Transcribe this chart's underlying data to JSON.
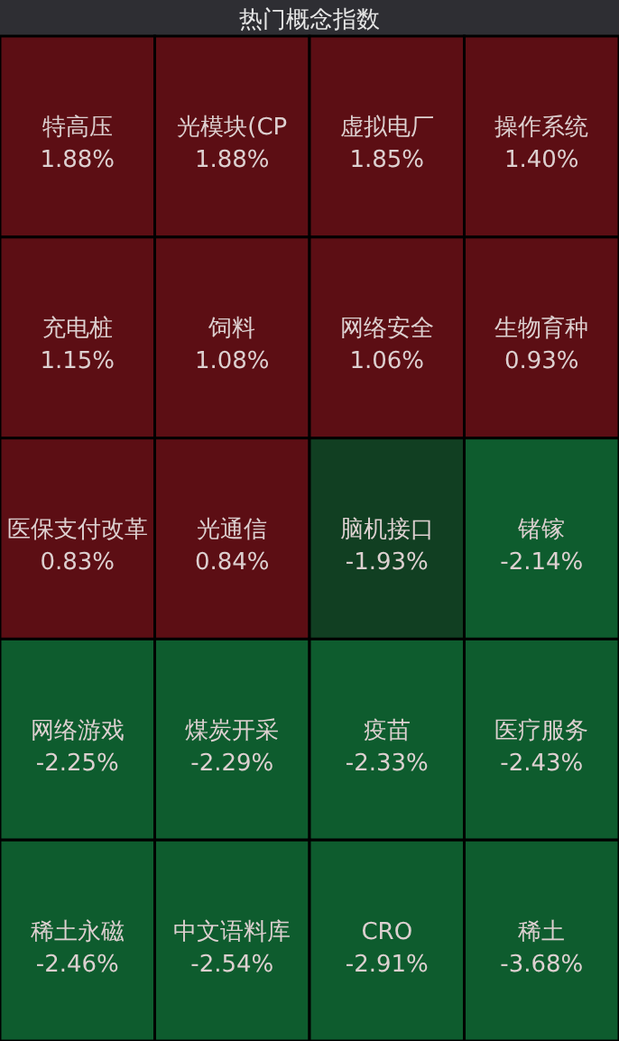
{
  "chart_data": {
    "type": "other",
    "title": "热门概念指数",
    "categories": [
      "特高压",
      "光模块(CP",
      "虚拟电厂",
      "操作系统",
      "充电桩",
      "饲料",
      "网络安全",
      "生物育种",
      "医保支付改革",
      "光通信",
      "脑机接口",
      "锗镓",
      "网络游戏",
      "煤炭开采",
      "疫苗",
      "医疗服务",
      "稀土永磁",
      "中文语料库",
      "CRO",
      "稀土"
    ],
    "values": [
      1.88,
      1.88,
      1.85,
      1.4,
      1.15,
      1.08,
      1.06,
      0.93,
      0.83,
      0.84,
      -1.93,
      -2.14,
      -2.25,
      -2.29,
      -2.33,
      -2.43,
      -2.46,
      -2.54,
      -2.91,
      -3.68
    ],
    "value_labels": [
      "1.88%",
      "1.88%",
      "1.85%",
      "1.40%",
      "1.15%",
      "1.08%",
      "1.06%",
      "0.93%",
      "0.83%",
      "0.84%",
      "-1.93%",
      "-2.14%",
      "-2.25%",
      "-2.29%",
      "-2.33%",
      "-2.43%",
      "-2.46%",
      "-2.54%",
      "-2.91%",
      "-3.68%"
    ],
    "colors": [
      "#5c0e14",
      "#5c0e14",
      "#5c0e14",
      "#5c0e14",
      "#5c0e14",
      "#5c0e14",
      "#5c0e14",
      "#5c0e14",
      "#5c0e14",
      "#5c0e14",
      "#113f22",
      "#0e5c2e",
      "#0e5c2e",
      "#0e5c2e",
      "#0e5c2e",
      "#0e5c2e",
      "#0e5c2e",
      "#0e5c2e",
      "#0e5c2e",
      "#0e5c2e"
    ]
  }
}
